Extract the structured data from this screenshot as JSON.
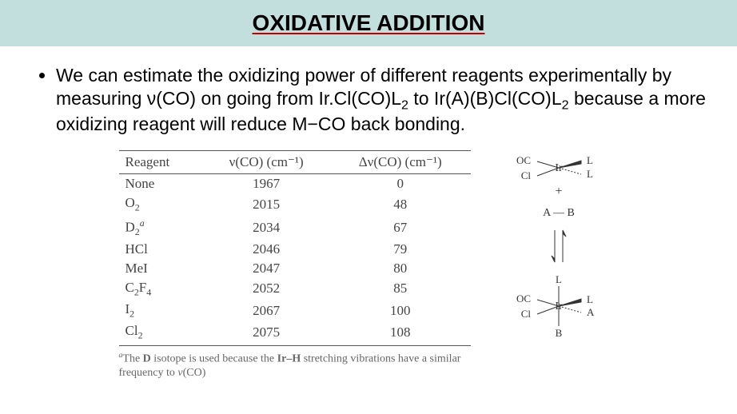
{
  "banner": {
    "title": "OXIDATIVE ADDITION",
    "bg_color": "#c3dfdd",
    "underline_color": "#c00000",
    "title_fontsize": 28
  },
  "bullet": {
    "text_parts": {
      "p1": "We can estimate the oxidizing power of different reagents experimentally by measuring ν(CO) on going from Ir.Cl(CO)L",
      "sub1": "2",
      "p2": " to Ir(A)(B)Cl(CO)L",
      "sub2": "2",
      "p3": " because a more oxidizing reagent will reduce M−CO back bonding."
    },
    "fontsize": 23
  },
  "table": {
    "columns": [
      "Reagent",
      "ν(CO) (cm⁻¹)",
      "Δν(CO) (cm⁻¹)"
    ],
    "rows": [
      {
        "reagent_html": "None",
        "vco": "1967",
        "dvco": "0"
      },
      {
        "reagent_html": "O<sub>2</sub>",
        "vco": "2015",
        "dvco": "48"
      },
      {
        "reagent_html": "D<sub>2</sub><sup><i>a</i></sup>",
        "vco": "2034",
        "dvco": "67"
      },
      {
        "reagent_html": "HCl",
        "vco": "2046",
        "dvco": "79"
      },
      {
        "reagent_html": "MeI",
        "vco": "2047",
        "dvco": "80"
      },
      {
        "reagent_html": "C<sub>2</sub>F<sub>4</sub>",
        "vco": "2052",
        "dvco": "85"
      },
      {
        "reagent_html": "I<sub>2</sub>",
        "vco": "2067",
        "dvco": "100"
      },
      {
        "reagent_html": "Cl<sub>2</sub>",
        "vco": "2075",
        "dvco": "108"
      }
    ],
    "footnote_html": "<sup><i>a</i></sup>The <b>D</b> isotope is used because the <b>Ir–H</b> stretching vibrations have a similar frequency to <i>ν</i>(CO)",
    "font_family": "Times New Roman",
    "text_color": "#444444",
    "border_color": "#555555",
    "fontsize": 17,
    "footnote_fontsize": 14
  },
  "scheme": {
    "labels": {
      "OC": "OC",
      "Cl": "Cl",
      "Ir": "Ir",
      "L": "L",
      "plus": "+",
      "A": "A",
      "B": "B",
      "AB": "A — B"
    },
    "stroke_color": "#333333",
    "text_color": "#333333"
  }
}
